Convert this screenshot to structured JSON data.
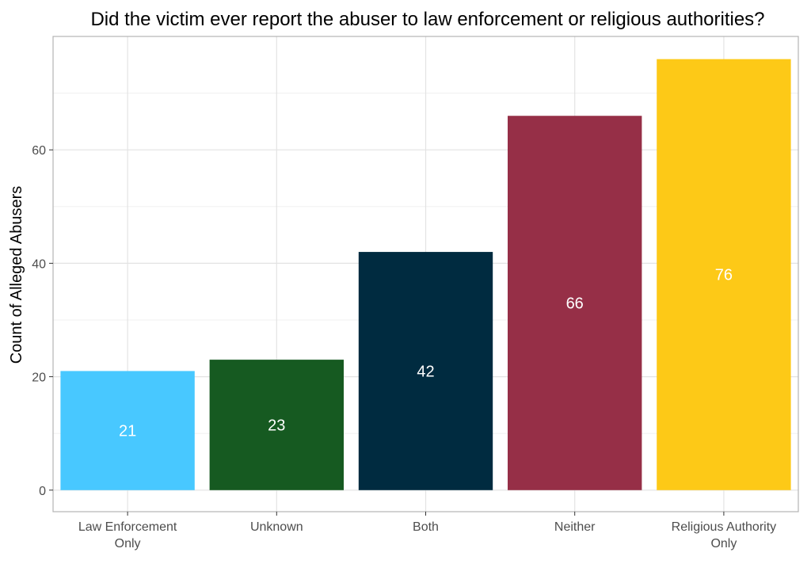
{
  "chart_data": {
    "type": "bar",
    "title": "Did the victim ever report the abuser to law enforcement or religious authorities?",
    "xlabel": "",
    "ylabel": "Count of Alleged Abusers",
    "categories": [
      "Law Enforcement Only",
      "Unknown",
      "Both",
      "Neither",
      "Religious Authority Only"
    ],
    "category_lines": [
      [
        "Law Enforcement",
        "Only"
      ],
      [
        "Unknown"
      ],
      [
        "Both"
      ],
      [
        "Neither"
      ],
      [
        "Religious Authority",
        "Only"
      ]
    ],
    "values": [
      21,
      23,
      42,
      66,
      76
    ],
    "colors": [
      "#48c8ff",
      "#165a21",
      "#002b40",
      "#962f47",
      "#fdc917"
    ],
    "ylim": [
      -3.8,
      80
    ],
    "yticks": [
      0,
      20,
      40,
      60
    ],
    "grid": true,
    "legend": "none"
  }
}
